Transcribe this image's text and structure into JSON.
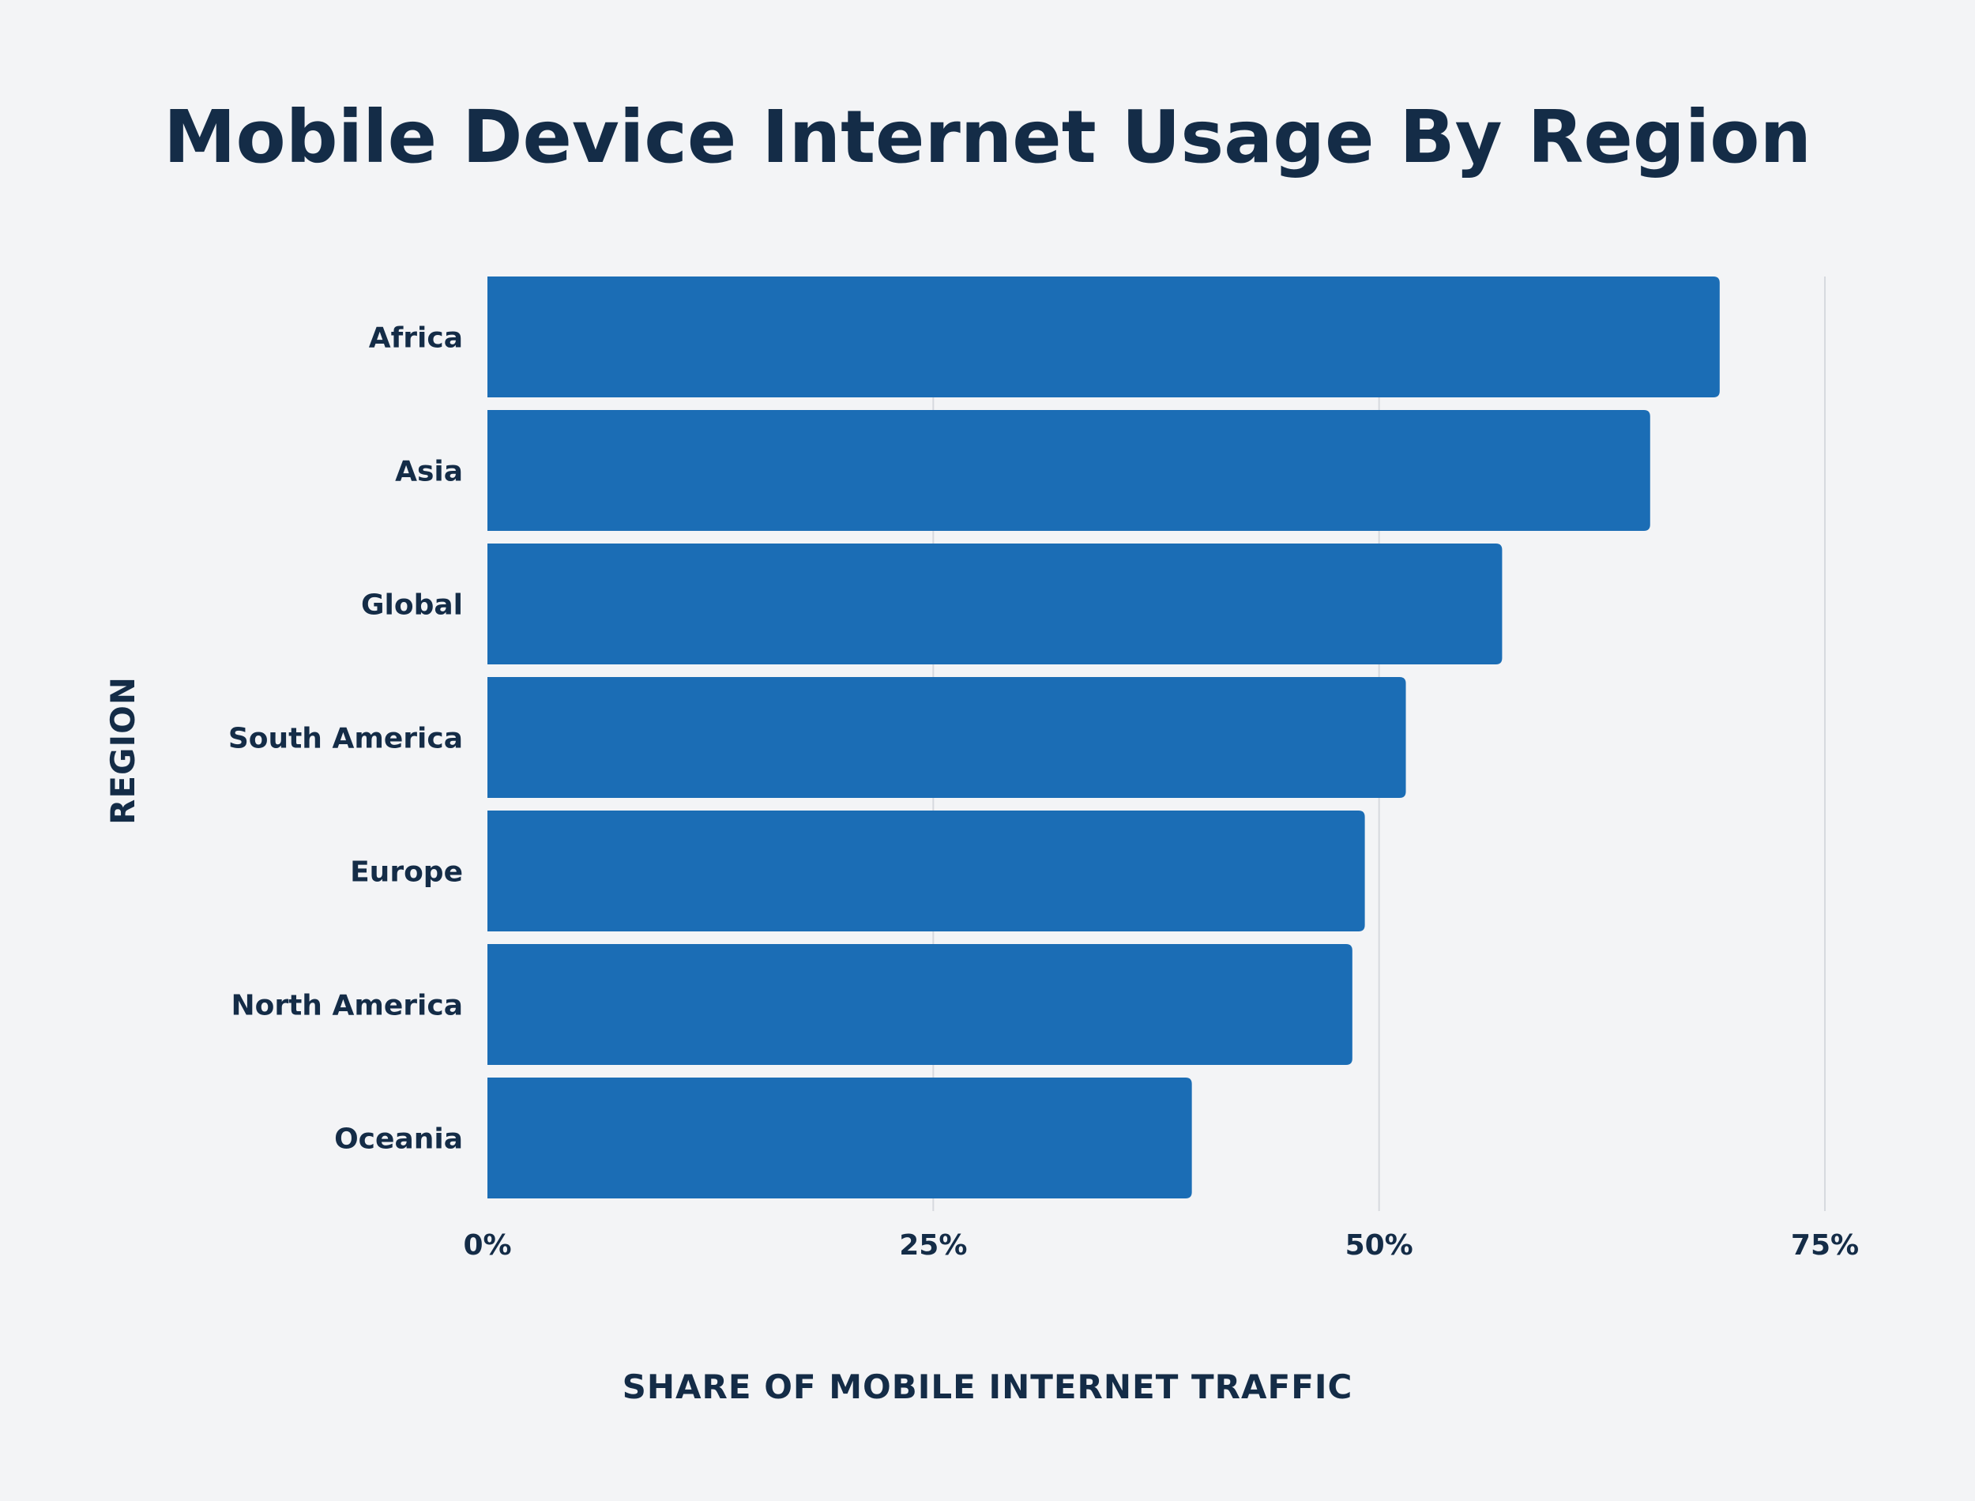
{
  "chart_data": {
    "type": "bar",
    "orientation": "horizontal",
    "title": "Mobile Device Internet Usage By Region",
    "xlabel": "SHARE OF MOBILE INTERNET TRAFFIC",
    "ylabel": "REGION",
    "categories": [
      "Africa",
      "Asia",
      "Global",
      "South America",
      "Europe",
      "North America",
      "Oceania"
    ],
    "values": [
      69.1,
      65.2,
      56.9,
      51.5,
      49.2,
      48.5,
      39.5
    ],
    "xlim": [
      0,
      75
    ],
    "xticks": [
      "0%",
      "25%",
      "50%",
      "75%"
    ],
    "grid": "vertical",
    "legend": "none",
    "colors": {
      "bar": "#1b6db5",
      "text": "#142c47",
      "grid": "#d6d9de",
      "background": "#f3f4f6"
    }
  }
}
